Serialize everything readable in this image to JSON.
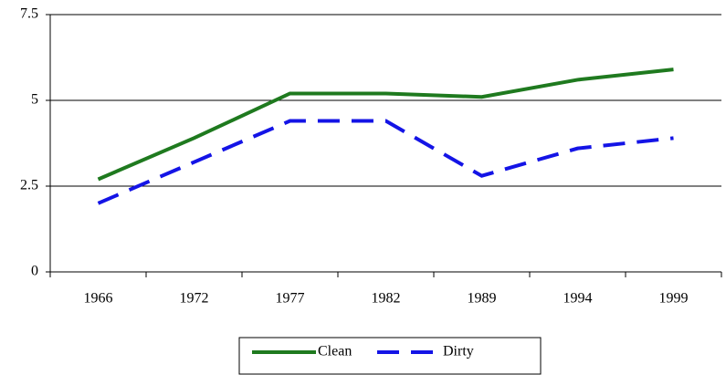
{
  "chart_data": {
    "type": "line",
    "categories": [
      "1966",
      "1972",
      "1977",
      "1982",
      "1989",
      "1994",
      "1999"
    ],
    "series": [
      {
        "name": "Clean",
        "color": "#1f7a1f",
        "dash": false,
        "values": [
          2.7,
          3.9,
          5.2,
          5.2,
          5.1,
          5.6,
          5.9
        ]
      },
      {
        "name": "Dirty",
        "color": "#1414e6",
        "dash": true,
        "values": [
          2.0,
          3.2,
          4.4,
          4.4,
          2.8,
          3.6,
          3.9
        ]
      }
    ],
    "ylim": [
      0,
      7.5
    ],
    "yticks": [
      0,
      2.5,
      5,
      7.5
    ],
    "grid": true,
    "legend": "bottom"
  }
}
